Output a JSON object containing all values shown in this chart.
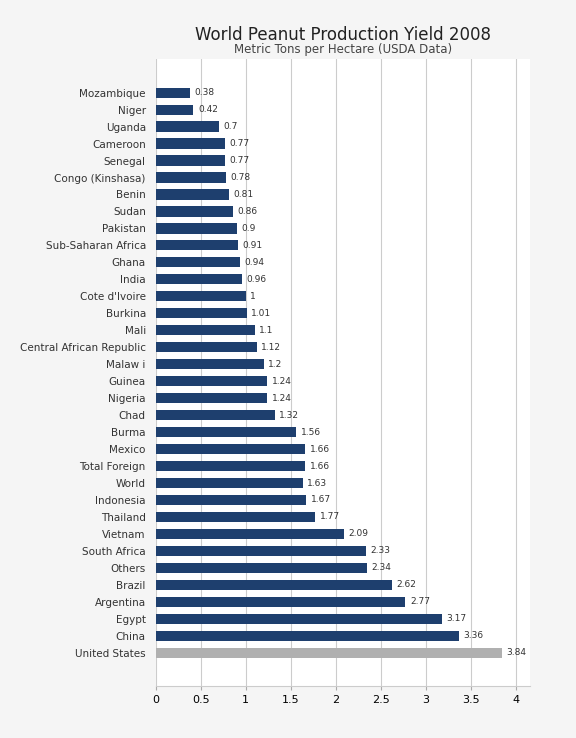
{
  "title": "World Peanut Production Yield 2008",
  "subtitle": "Metric Tons per Hectare (USDA Data)",
  "categories": [
    "Mozambique",
    "Niger",
    "Uganda",
    "Cameroon",
    "Senegal",
    "Congo (Kinshasa)",
    "Benin",
    "Sudan",
    "Pakistan",
    "Sub-Saharan Africa",
    "Ghana",
    "India",
    "Cote d'Ivoire",
    "Burkina",
    "Mali",
    "Central African Republic",
    "Malaw i",
    "Guinea",
    "Nigeria",
    "Chad",
    "Burma",
    "Mexico",
    "Total Foreign",
    "World",
    "Indonesia",
    "Thailand",
    "Vietnam",
    "South Africa",
    "Others",
    "Brazil",
    "Argentina",
    "Egypt",
    "China",
    "United States"
  ],
  "values": [
    0.38,
    0.42,
    0.7,
    0.77,
    0.77,
    0.78,
    0.81,
    0.86,
    0.9,
    0.91,
    0.94,
    0.96,
    1.0,
    1.01,
    1.1,
    1.12,
    1.2,
    1.24,
    1.24,
    1.32,
    1.56,
    1.66,
    1.66,
    1.63,
    1.67,
    1.77,
    2.09,
    2.33,
    2.34,
    2.62,
    2.77,
    3.17,
    3.36,
    3.84
  ],
  "value_labels": [
    "0.38",
    "0.42",
    "0.7",
    "0.77",
    "0.77",
    "0.78",
    "0.81",
    "0.86",
    "0.9",
    "0.91",
    "0.94",
    "0.96",
    "1",
    "1.01",
    "1.1",
    "1.12",
    "1.2",
    "1.24",
    "1.24",
    "1.32",
    "1.56",
    "1.66",
    "1.66",
    "1.63",
    "1.67",
    "1.77",
    "2.09",
    "2.33",
    "2.34",
    "2.62",
    "2.77",
    "3.17",
    "3.36",
    "3.84"
  ],
  "bar_color": "#1e3f6e",
  "last_bar_color": "#b0b0b0",
  "bg_color": "#f5f5f5",
  "plot_bg_color": "#ffffff",
  "grid_color": "#cccccc",
  "title_fontsize": 12,
  "subtitle_fontsize": 8.5,
  "label_fontsize": 7.5,
  "value_fontsize": 6.5,
  "xlim": [
    0,
    4.15
  ],
  "xticks": [
    0,
    0.5,
    1,
    1.5,
    2,
    2.5,
    3,
    3.5,
    4
  ],
  "xtick_labels": [
    "0",
    "0.5",
    "1",
    "1.5",
    "2",
    "2.5",
    "3",
    "3.5",
    "4"
  ],
  "bar_height": 0.6
}
